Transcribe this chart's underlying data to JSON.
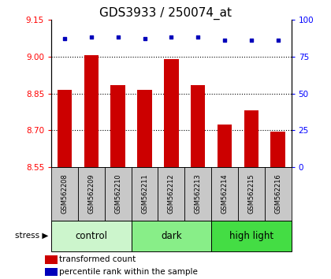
{
  "title": "GDS3933 / 250074_at",
  "samples": [
    "GSM562208",
    "GSM562209",
    "GSM562210",
    "GSM562211",
    "GSM562212",
    "GSM562213",
    "GSM562214",
    "GSM562215",
    "GSM562216"
  ],
  "red_values": [
    8.865,
    9.005,
    8.885,
    8.865,
    8.99,
    8.885,
    8.725,
    8.78,
    8.695
  ],
  "blue_values": [
    87,
    88,
    88,
    87,
    88,
    88,
    86,
    86,
    86
  ],
  "ylim_left": [
    8.55,
    9.15
  ],
  "ylim_right": [
    0,
    100
  ],
  "yticks_left": [
    8.55,
    8.7,
    8.85,
    9.0,
    9.15
  ],
  "yticks_right": [
    0,
    25,
    50,
    75,
    100
  ],
  "groups": [
    {
      "label": "control",
      "indices": [
        0,
        1,
        2
      ],
      "color": "#ccf5cc"
    },
    {
      "label": "dark",
      "indices": [
        3,
        4,
        5
      ],
      "color": "#88ee88"
    },
    {
      "label": "high light",
      "indices": [
        6,
        7,
        8
      ],
      "color": "#44dd44"
    }
  ],
  "bar_color": "#cc0000",
  "dot_color": "#0000bb",
  "bar_bottom": 8.55,
  "bar_width": 0.55,
  "stress_label": "stress",
  "legend_red": "transformed count",
  "legend_blue": "percentile rank within the sample",
  "tick_label_area_color": "#c8c8c8",
  "title_fontsize": 11,
  "tick_fontsize": 7.5
}
